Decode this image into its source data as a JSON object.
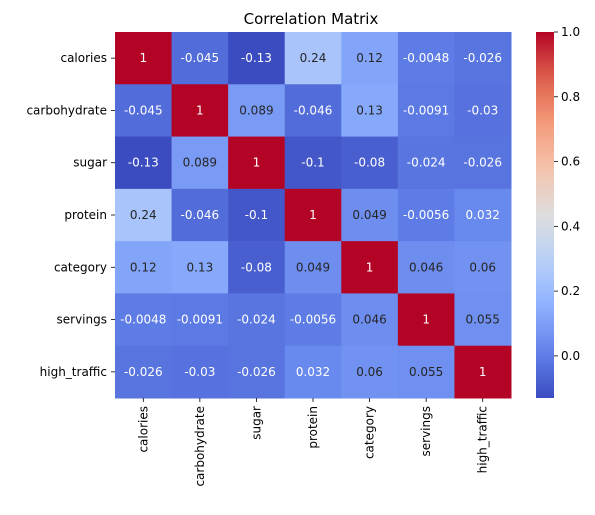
{
  "chart_data": {
    "type": "heatmap",
    "title": "Correlation Matrix",
    "xlabel": "",
    "ylabel": "",
    "labels": [
      "calories",
      "carbohydrate",
      "sugar",
      "protein",
      "category",
      "servings",
      "high_traffic"
    ],
    "matrix": [
      [
        1,
        -0.045,
        -0.13,
        0.24,
        0.12,
        -0.0048,
        -0.026
      ],
      [
        -0.045,
        1,
        0.089,
        -0.046,
        0.13,
        -0.0091,
        -0.03
      ],
      [
        -0.13,
        0.089,
        1,
        -0.1,
        -0.08,
        -0.024,
        -0.026
      ],
      [
        0.24,
        -0.046,
        -0.1,
        1,
        0.049,
        -0.0056,
        0.032
      ],
      [
        0.12,
        0.13,
        -0.08,
        0.049,
        1,
        0.046,
        0.06
      ],
      [
        -0.0048,
        -0.0091,
        -0.024,
        -0.0056,
        0.046,
        1,
        0.055
      ],
      [
        -0.026,
        -0.03,
        -0.026,
        0.032,
        0.06,
        0.055,
        1
      ]
    ],
    "annotations": [
      [
        "1",
        "-0.045",
        "-0.13",
        "0.24",
        "0.12",
        "-0.0048",
        "-0.026"
      ],
      [
        "-0.045",
        "1",
        "0.089",
        "-0.046",
        "0.13",
        "-0.0091",
        "-0.03"
      ],
      [
        "-0.13",
        "0.089",
        "1",
        "-0.1",
        "-0.08",
        "-0.024",
        "-0.026"
      ],
      [
        "0.24",
        "-0.046",
        "-0.1",
        "1",
        "0.049",
        "-0.0056",
        "0.032"
      ],
      [
        "0.12",
        "0.13",
        "-0.08",
        "0.049",
        "1",
        "0.046",
        "0.06"
      ],
      [
        "-0.0048",
        "-0.0091",
        "-0.024",
        "-0.0056",
        "0.046",
        "1",
        "0.055"
      ],
      [
        "-0.026",
        "-0.03",
        "-0.026",
        "0.032",
        "0.06",
        "0.055",
        "1"
      ]
    ],
    "colormap": "coolwarm",
    "color_range": [
      -0.13,
      1.0
    ],
    "colorbar_ticks": [
      -0.0,
      0.2,
      0.4,
      0.6,
      0.8,
      1.0
    ],
    "colorbar_tick_labels": [
      "0.0",
      "0.2",
      "0.4",
      "0.6",
      "0.8",
      "1.0"
    ]
  }
}
